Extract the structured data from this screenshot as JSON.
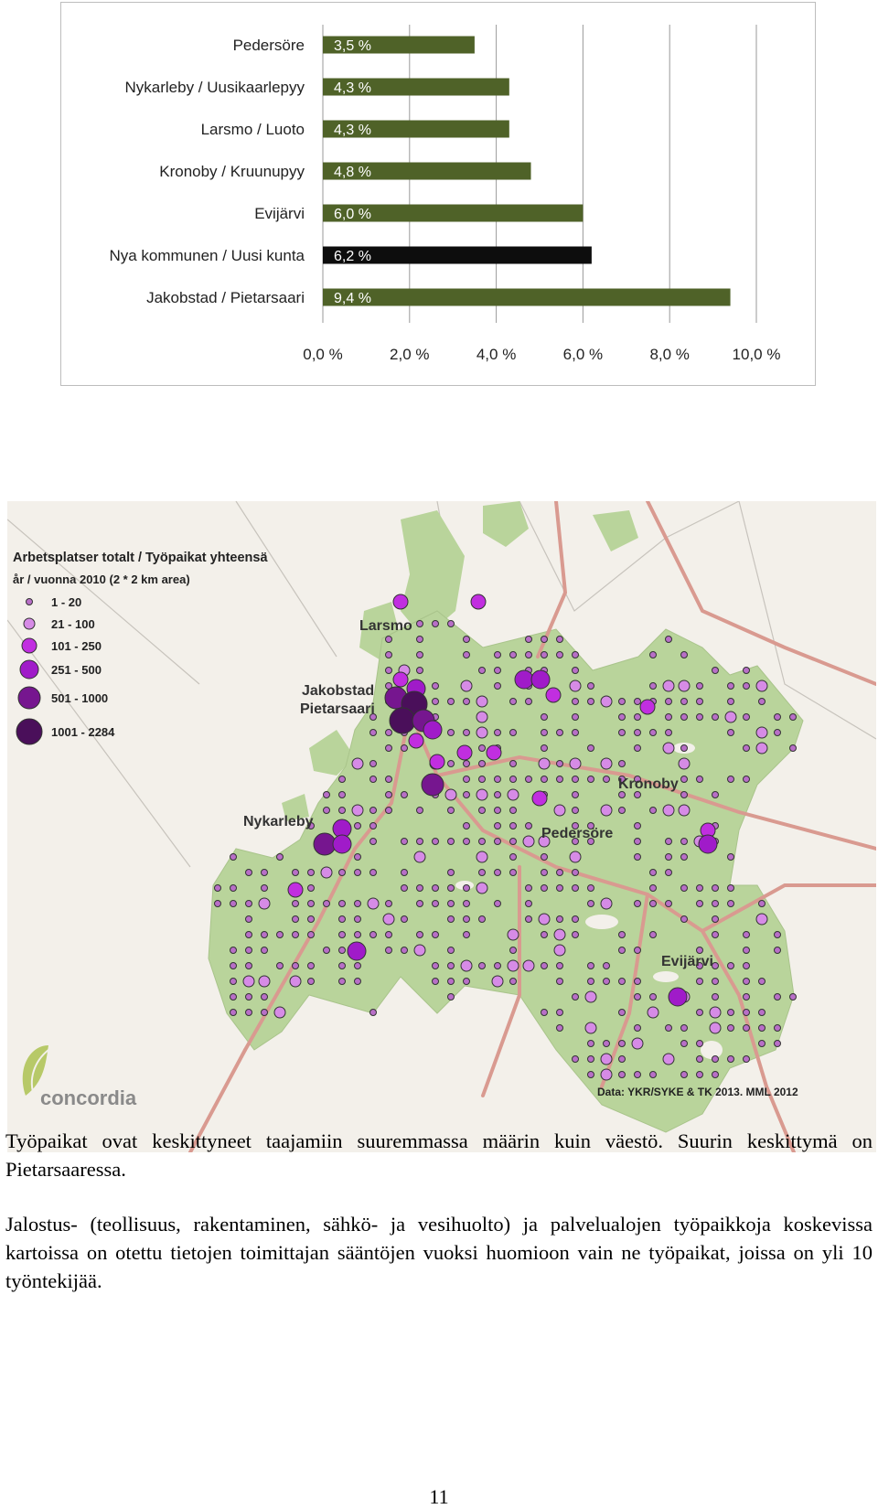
{
  "chart_data": {
    "type": "bar",
    "orientation": "horizontal",
    "categories": [
      "Pedersöre",
      "Nykarleby / Uusikaarlepyy",
      "Larsmo / Luoto",
      "Kronoby / Kruunupyy",
      "Evijärvi",
      "Nya kommunen / Uusi kunta",
      "Jakobstad / Pietarsaari"
    ],
    "values": [
      3.5,
      4.3,
      4.3,
      4.8,
      6.0,
      6.2,
      9.4
    ],
    "value_labels": [
      "3,5 %",
      "4,3 %",
      "4,3 %",
      "4,8 %",
      "6,0 %",
      "6,2 %",
      "9,4 %"
    ],
    "xlim": [
      0,
      10
    ],
    "xticks": [
      "0,0 %",
      "2,0 %",
      "4,0 %",
      "6,0 %",
      "8,0 %",
      "10,0 %"
    ],
    "grid": true,
    "colors": {
      "default": "#4f6228",
      "highlight": "#0d0d0d",
      "highlight_category": "Nya kommunen / Uusi kunta"
    }
  },
  "map": {
    "legend_title_1": "Arbetsplatser totalt / Työpaikat yhteensä",
    "legend_title_2": "år / vuonna 2010 (2 * 2 km area)",
    "legend": [
      {
        "label": "1 - 20",
        "color": "#b86fc7"
      },
      {
        "label": "21 - 100",
        "color": "#d68be6"
      },
      {
        "label": "101 - 250",
        "color": "#c12ee0"
      },
      {
        "label": "251 - 500",
        "color": "#a01bc9"
      },
      {
        "label": "501 - 1000",
        "color": "#76168f"
      },
      {
        "label": "1001 - 2284",
        "color": "#4a0f5a"
      }
    ],
    "places": {
      "larsmo": "Larsmo",
      "jakobstad": "Jakobstad",
      "pietarsaari": "Pietarsaari",
      "kronoby": "Kronoby",
      "nykarleby": "Nykarleby",
      "pedersore": "Pedersöre",
      "evijarvi": "Evijärvi"
    },
    "logo_text": "concordia",
    "source": "Data: YKR/SYKE & TK 2013. MML 2012",
    "colors": {
      "land": "#b9d49b",
      "sea": "#f3f0ea",
      "road": "#d99a90"
    }
  },
  "text": {
    "para1": "Työpaikat ovat keskittyneet taajamiin suuremmassa määrin kuin väestö. Suurin keskittymä on Pietarsaaressa.",
    "para2": "Jalostus- (teollisuus, rakentaminen, sähkö- ja vesihuolto) ja palvelualojen työpaikkoja koskevissa kartoissa on otettu tietojen toimittajan sääntöjen vuoksi huomioon vain ne työpaikat, joissa on yli 10 työntekijää.",
    "page_number": "11"
  }
}
